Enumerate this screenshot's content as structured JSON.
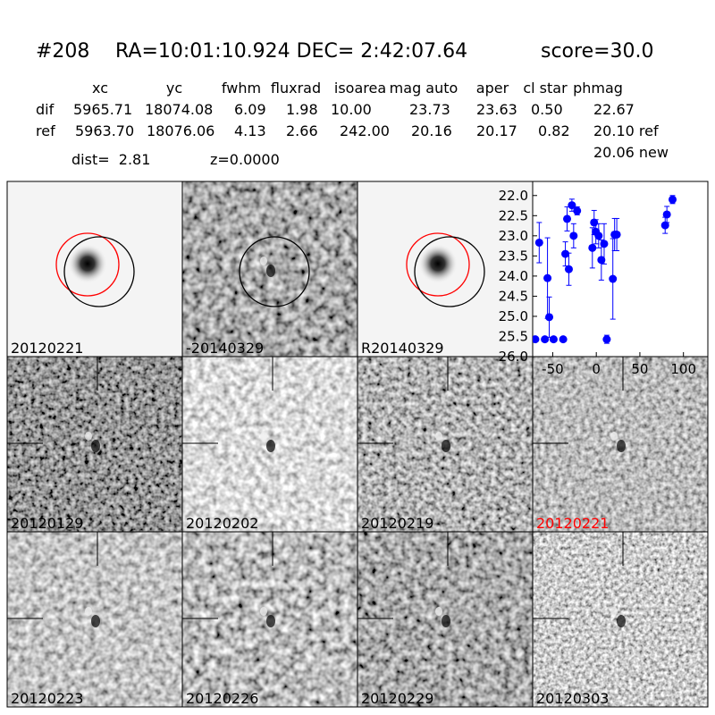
{
  "header": {
    "id": "#208",
    "coords": "RA=10:01:10.924 DEC= 2:42:07.64",
    "score": "score=30.0"
  },
  "table": {
    "columns": [
      "xc",
      "yc",
      "fwhm",
      "fluxrad",
      "isoarea",
      "mag auto",
      "aper",
      "cl star",
      "phmag"
    ],
    "rows": [
      [
        "dif",
        "5965.71",
        "18074.08",
        "6.09",
        "1.98",
        "10.00",
        "23.73",
        "23.63",
        "0.50",
        "22.67"
      ],
      [
        "ref",
        "5963.70",
        "18076.06",
        "4.13",
        "2.66",
        "242.00",
        "20.16",
        "20.17",
        "0.82",
        "20.10 ref"
      ]
    ],
    "note": "20.06 new"
  },
  "dist": "dist=  2.81",
  "z": "z=0.0000",
  "stamps": [
    "20120221",
    "-20140329",
    "R20140329",
    "20120129",
    "20120202",
    "20120219",
    "20120221",
    "20120223",
    "20120226",
    "20120229",
    "20120303"
  ],
  "chart_data": {
    "type": "scatter",
    "color": "#0000ff",
    "invert_y": true,
    "x": [
      -70,
      -65.5,
      -59,
      -56,
      -54,
      -49,
      -38,
      -35.5,
      -33.5,
      -31.5,
      -28,
      -26,
      -22,
      -4.5,
      -2.5,
      -0.5,
      2.7,
      5.8,
      9,
      12,
      19,
      21,
      23.5,
      79,
      81,
      87.5
    ],
    "values": [
      25.57,
      23.17,
      25.57,
      24.05,
      25.02,
      25.57,
      25.57,
      23.45,
      22.58,
      23.83,
      22.24,
      23.0,
      22.38,
      23.3,
      22.67,
      22.9,
      23.0,
      23.6,
      23.2,
      25.57,
      24.07,
      22.97,
      22.97,
      22.74,
      22.47,
      22.1
    ],
    "errors": [
      null,
      0.5,
      null,
      1.0,
      0.5,
      null,
      null,
      0.3,
      0.3,
      0.4,
      0.15,
      0.3,
      0.1,
      0.5,
      0.3,
      0.3,
      0.3,
      0.5,
      0.5,
      0.1,
      1.0,
      0.4,
      0.4,
      0.2,
      0.2,
      0.1
    ],
    "xlim": [
      -73,
      128
    ],
    "ylim": [
      21.65,
      26.0
    ],
    "xticks": [
      -50,
      0,
      50,
      100
    ],
    "yticks": [
      {
        "value": 22.0,
        "label": "22.0"
      },
      {
        "value": 22.5,
        "label": "22.5"
      },
      {
        "value": 23.0,
        "label": "23.0"
      },
      {
        "value": 23.5,
        "label": "23.5"
      },
      {
        "value": 24.0,
        "label": "24.0"
      },
      {
        "value": 24.5,
        "label": "24.5"
      },
      {
        "value": 25.0,
        "label": "25.0"
      },
      {
        "value": 25.5,
        "label": "25.5"
      },
      {
        "value": 26.0,
        "label": "26.0"
      }
    ]
  }
}
